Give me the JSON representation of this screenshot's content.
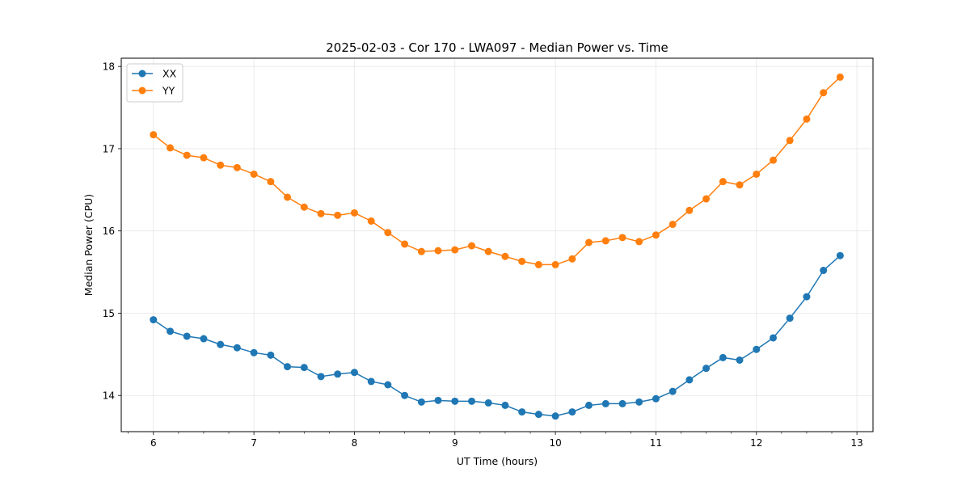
{
  "chart_data": {
    "type": "line",
    "title": "2025-02-03 - Cor 170 - LWA097 - Median Power vs. Time",
    "xlabel": "UT Time (hours)",
    "ylabel": "Median Power (CPU)",
    "xlim": [
      5.68,
      13.16
    ],
    "ylim": [
      13.56,
      18.1
    ],
    "xticks": [
      6,
      7,
      8,
      9,
      10,
      11,
      12,
      13
    ],
    "xtick_labels": [
      "6",
      "7",
      "8",
      "9",
      "10",
      "11",
      "12",
      "13"
    ],
    "yticks": [
      14,
      15,
      16,
      17,
      18
    ],
    "ytick_labels": [
      "14",
      "15",
      "16",
      "17",
      "18"
    ],
    "minor_xticks": [
      5.75,
      6.25,
      6.5,
      6.75,
      7.25,
      7.5,
      7.75,
      8.25,
      8.5,
      8.75,
      9.25,
      9.5,
      9.75,
      10.25,
      10.5,
      10.75,
      11.25,
      11.5,
      11.75,
      12.25,
      12.5,
      12.75
    ],
    "grid": true,
    "legend_position": "upper-left",
    "x": [
      6.0,
      6.167,
      6.333,
      6.5,
      6.667,
      6.833,
      7.0,
      7.167,
      7.333,
      7.5,
      7.667,
      7.833,
      8.0,
      8.167,
      8.333,
      8.5,
      8.667,
      8.833,
      9.0,
      9.167,
      9.333,
      9.5,
      9.667,
      9.833,
      10.0,
      10.167,
      10.333,
      10.5,
      10.667,
      10.833,
      11.0,
      11.167,
      11.333,
      11.5,
      11.667,
      11.833,
      12.0,
      12.167,
      12.333,
      12.5,
      12.667,
      12.833
    ],
    "series": [
      {
        "name": "XX",
        "color": "#1f77b4",
        "values": [
          14.92,
          14.78,
          14.72,
          14.69,
          14.62,
          14.58,
          14.52,
          14.49,
          14.35,
          14.34,
          14.23,
          14.26,
          14.28,
          14.17,
          14.13,
          14.0,
          13.92,
          13.94,
          13.93,
          13.93,
          13.91,
          13.88,
          13.8,
          13.77,
          13.75,
          13.8,
          13.88,
          13.9,
          13.9,
          13.92,
          13.96,
          14.05,
          14.19,
          14.33,
          14.46,
          14.43,
          14.56,
          14.7,
          14.94,
          15.2,
          15.52,
          15.7
        ]
      },
      {
        "name": "YY",
        "color": "#ff7f0e",
        "values": [
          17.17,
          17.01,
          16.92,
          16.89,
          16.8,
          16.77,
          16.69,
          16.6,
          16.41,
          16.29,
          16.21,
          16.19,
          16.22,
          16.12,
          15.98,
          15.84,
          15.75,
          15.76,
          15.77,
          15.82,
          15.75,
          15.69,
          15.63,
          15.59,
          15.59,
          15.66,
          15.86,
          15.88,
          15.92,
          15.87,
          15.95,
          16.08,
          16.25,
          16.39,
          16.6,
          16.56,
          16.69,
          16.86,
          17.1,
          17.36,
          17.68,
          17.87
        ]
      }
    ]
  }
}
